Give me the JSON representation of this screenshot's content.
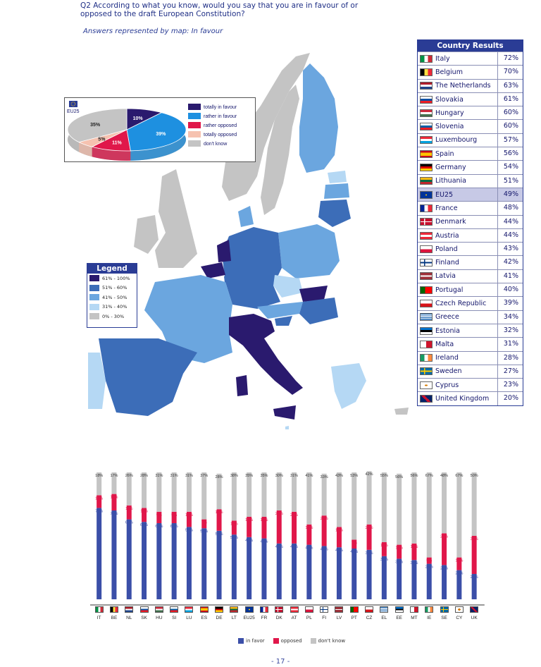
{
  "question": "Q2 According to what you know, would you say that you are in favour of or opposed to the draft European Constitution?",
  "subtitle": "Answers represented by map: In favour",
  "page_number": "- 17 -",
  "colors": {
    "totally_in_favour": "#2a1a6e",
    "rather_in_favour": "#1e90e0",
    "rather_opposed": "#e0174a",
    "totally_opposed": "#f6c2b0",
    "dont_know": "#c4c4c4",
    "in_favor": "#3b4fa8",
    "opposed": "#e0174a",
    "legend_61_100": "#2a1a6e",
    "legend_51_60": "#3c6db8",
    "legend_41_50": "#6ba6df",
    "legend_31_40": "#b5d8f4",
    "legend_0_30": "#c4c4c4"
  },
  "pie": {
    "label": "EU25",
    "slices": [
      {
        "name": "totally in favour",
        "value": 10,
        "label": "10%"
      },
      {
        "name": "rather in favour",
        "value": 39,
        "label": "39%"
      },
      {
        "name": "rather opposed",
        "value": 11,
        "label": "11%"
      },
      {
        "name": "totally opposed",
        "value": 5,
        "label": "5%"
      },
      {
        "name": "don't know",
        "value": 35,
        "label": "35%"
      }
    ]
  },
  "map_legend": {
    "title": "Legend",
    "items": [
      "61% - 100%",
      "51% - 60%",
      "41% - 50%",
      "31% - 40%",
      "0% - 30%"
    ]
  },
  "country_results": {
    "title": "Country Results",
    "rows": [
      {
        "name": "Italy",
        "value": "72%",
        "flag": "it"
      },
      {
        "name": "Belgium",
        "value": "70%",
        "flag": "be"
      },
      {
        "name": "The Netherlands",
        "value": "63%",
        "flag": "nl"
      },
      {
        "name": "Slovakia",
        "value": "61%",
        "flag": "sk"
      },
      {
        "name": "Hungary",
        "value": "60%",
        "flag": "hu"
      },
      {
        "name": "Slovenia",
        "value": "60%",
        "flag": "si"
      },
      {
        "name": "Luxembourg",
        "value": "57%",
        "flag": "lu"
      },
      {
        "name": "Spain",
        "value": "56%",
        "flag": "es"
      },
      {
        "name": "Germany",
        "value": "54%",
        "flag": "de"
      },
      {
        "name": "Lithuania",
        "value": "51%",
        "flag": "lt"
      },
      {
        "name": "EU25",
        "value": "49%",
        "flag": "eu"
      },
      {
        "name": "France",
        "value": "48%",
        "flag": "fr"
      },
      {
        "name": "Denmark",
        "value": "44%",
        "flag": "dk"
      },
      {
        "name": "Austria",
        "value": "44%",
        "flag": "at"
      },
      {
        "name": "Poland",
        "value": "43%",
        "flag": "pl"
      },
      {
        "name": "Finland",
        "value": "42%",
        "flag": "fi"
      },
      {
        "name": "Latvia",
        "value": "41%",
        "flag": "lv"
      },
      {
        "name": "Portugal",
        "value": "40%",
        "flag": "pt"
      },
      {
        "name": "Czech Republic",
        "value": "39%",
        "flag": "cz"
      },
      {
        "name": "Greece",
        "value": "34%",
        "flag": "gr"
      },
      {
        "name": "Estonia",
        "value": "32%",
        "flag": "ee"
      },
      {
        "name": "Malta",
        "value": "31%",
        "flag": "mt"
      },
      {
        "name": "Ireland",
        "value": "28%",
        "flag": "ie"
      },
      {
        "name": "Sweden",
        "value": "27%",
        "flag": "se"
      },
      {
        "name": "Cyprus",
        "value": "23%",
        "flag": "cy"
      },
      {
        "name": "United Kingdom",
        "value": "20%",
        "flag": "uk"
      }
    ]
  },
  "chart_data": {
    "type": "bar",
    "stacked": true,
    "categories": [
      "IT",
      "BE",
      "NL",
      "SK",
      "HU",
      "SI",
      "LU",
      "ES",
      "DE",
      "LT",
      "EU25",
      "FR",
      "DK",
      "AT",
      "PL",
      "FI",
      "LV",
      "PT",
      "CZ",
      "EL",
      "EE",
      "MT",
      "IE",
      "SE",
      "CY",
      "UK"
    ],
    "series": [
      {
        "name": "in favor",
        "values": [
          72,
          70,
          63,
          61,
          60,
          60,
          57,
          56,
          54,
          51,
          49,
          48,
          44,
          44,
          43,
          42,
          41,
          40,
          39,
          34,
          32,
          31,
          28,
          27,
          23,
          20
        ]
      },
      {
        "name": "opposed",
        "values": [
          10,
          13,
          11,
          11,
          9,
          9,
          12,
          7,
          17,
          11,
          16,
          17,
          26,
          25,
          16,
          24,
          16,
          7,
          20,
          11,
          11,
          13,
          5,
          25,
          10,
          30
        ]
      },
      {
        "name": "don't know",
        "values": [
          18,
          17,
          26,
          28,
          31,
          31,
          31,
          37,
          28,
          38,
          35,
          35,
          30,
          31,
          41,
          33,
          43,
          53,
          42,
          55,
          56,
          56,
          67,
          48,
          67,
          50
        ]
      }
    ],
    "ylim": [
      0,
      100
    ]
  }
}
